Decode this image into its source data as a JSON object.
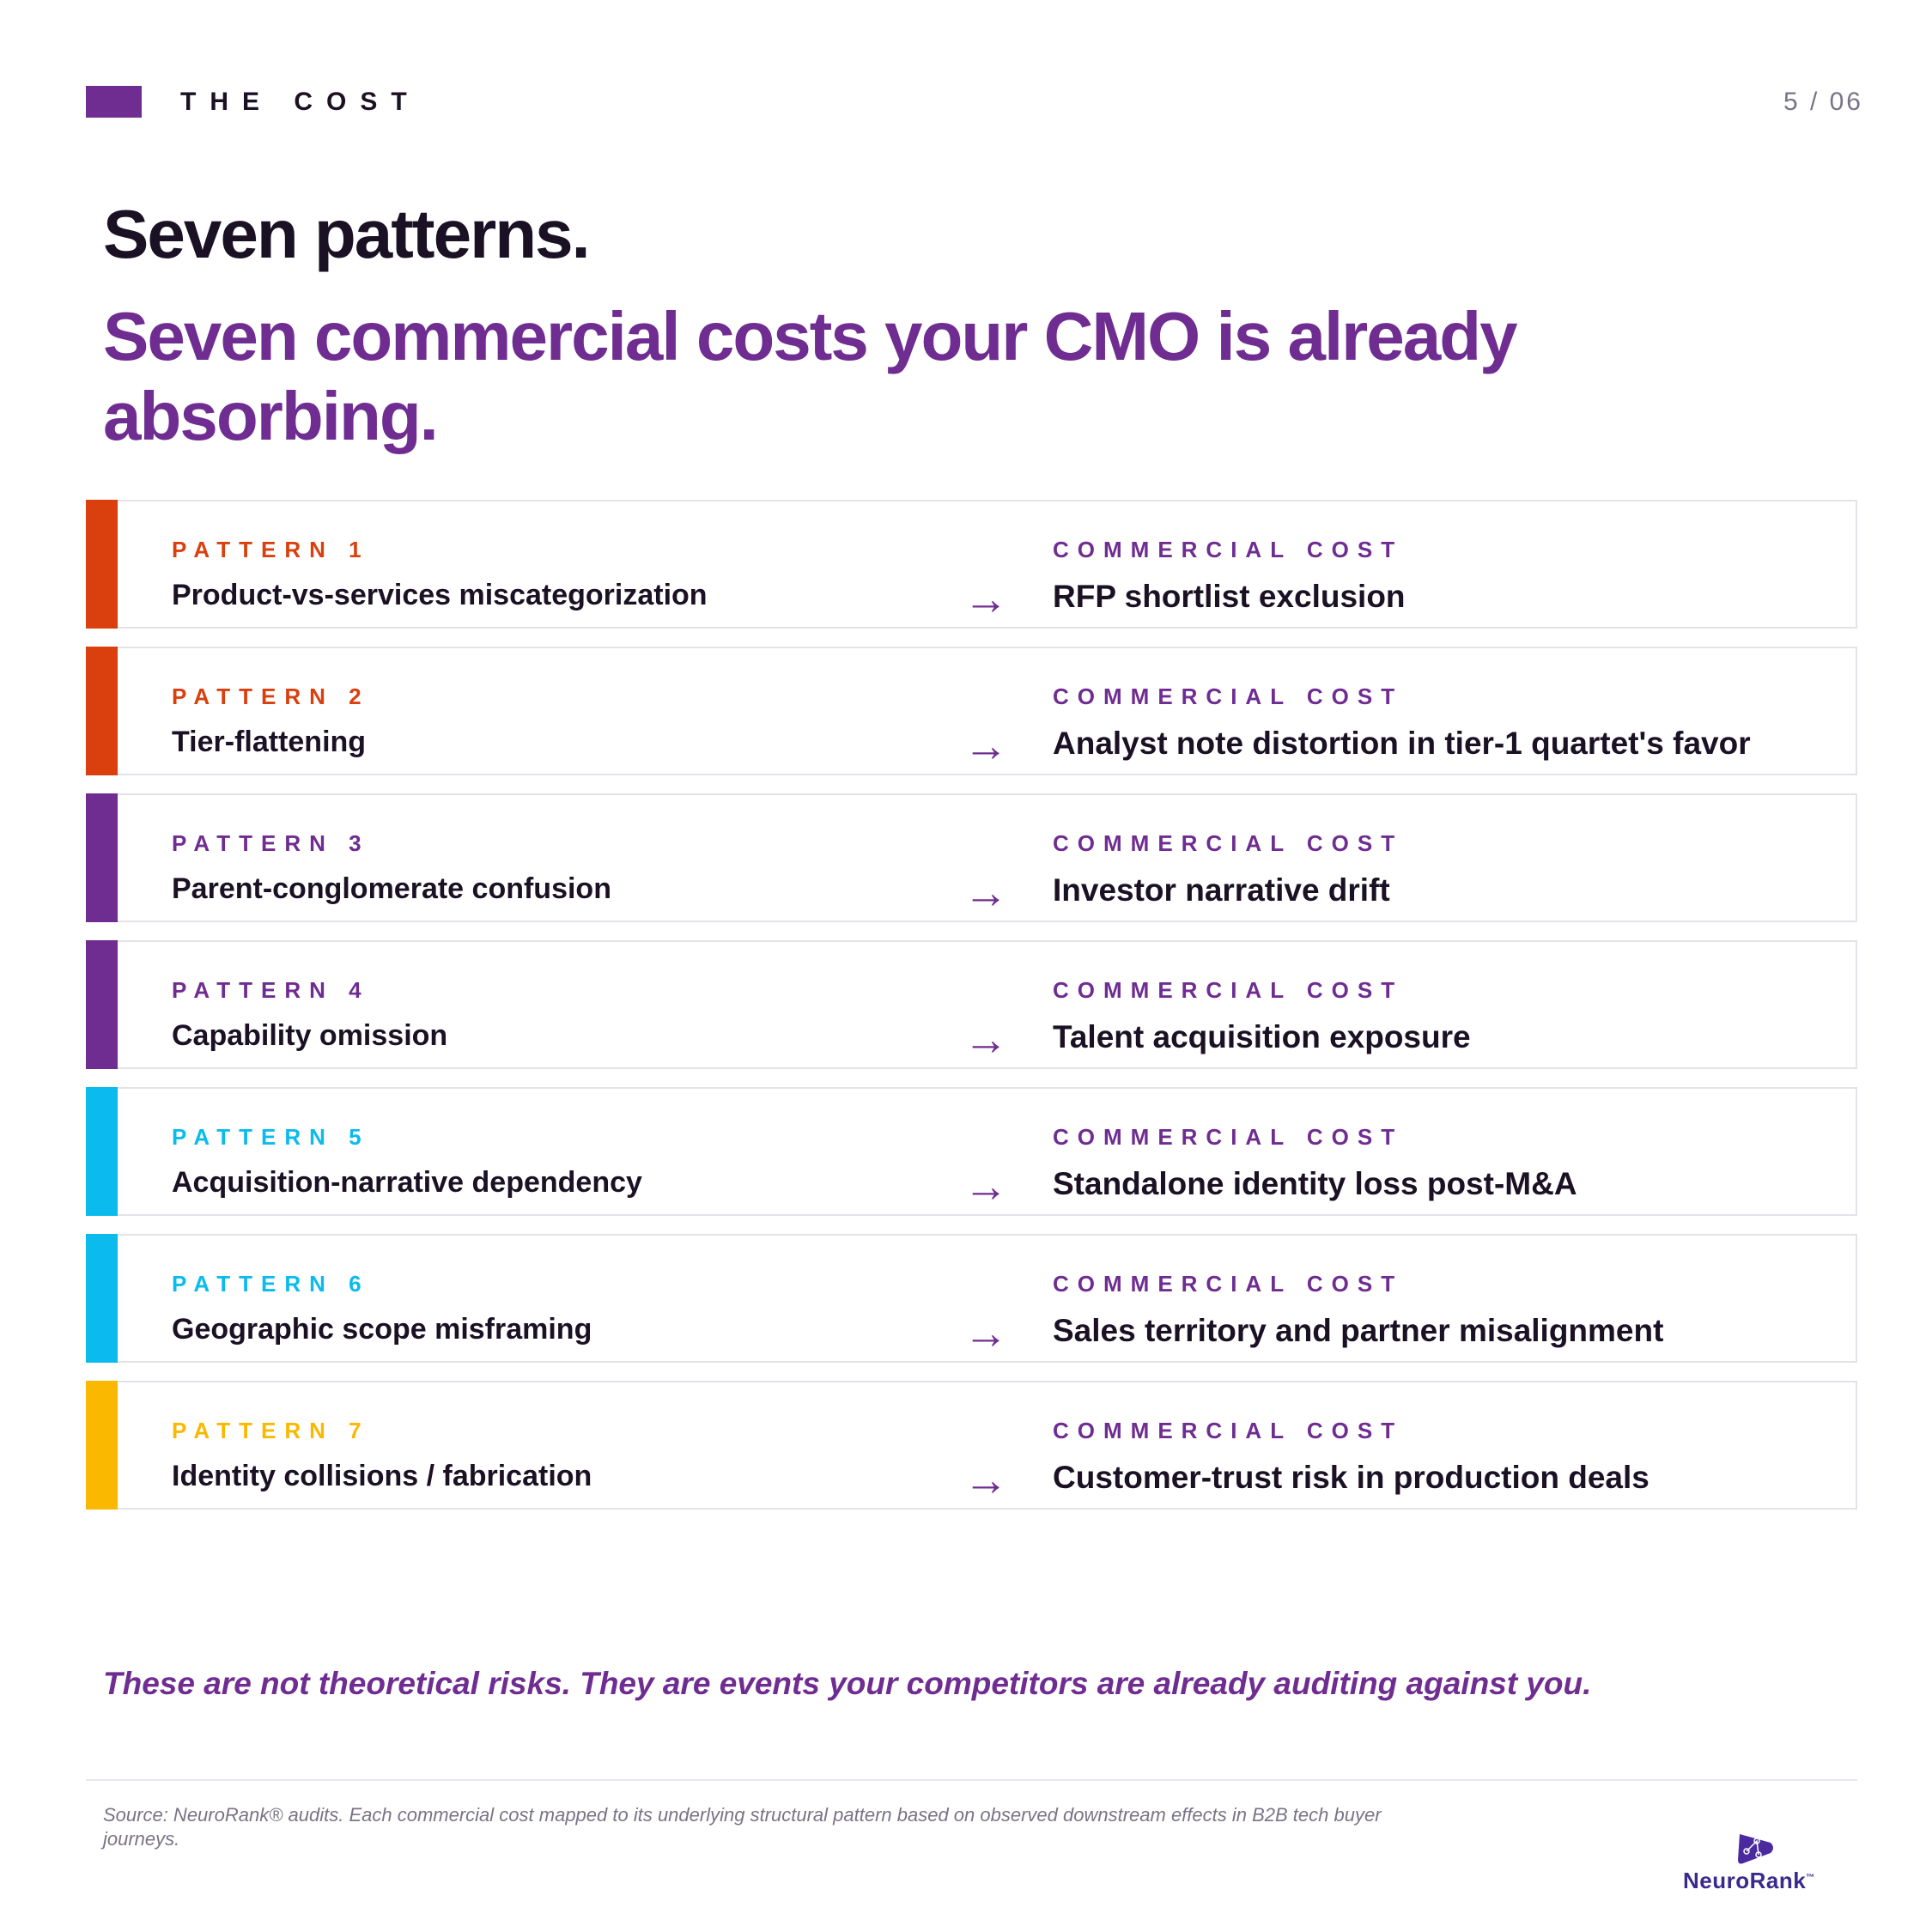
{
  "header": {
    "kicker": "THE COST",
    "page": "5 / 06"
  },
  "title": "Seven patterns.",
  "subtitle": "Seven commercial costs your CMO is already absorbing.",
  "rows": [
    {
      "label": "PATTERN 1",
      "name": "Product-vs-services miscategorization",
      "cost_label": "COMMERCIAL COST",
      "cost": "RFP shortlist exclusion",
      "color": "#d9400e"
    },
    {
      "label": "PATTERN 2",
      "name": "Tier-flattening",
      "cost_label": "COMMERCIAL COST",
      "cost": "Analyst note distortion in tier-1 quartet's favor",
      "color": "#d9400e"
    },
    {
      "label": "PATTERN 3",
      "name": "Parent-conglomerate confusion",
      "cost_label": "COMMERCIAL COST",
      "cost": "Investor narrative drift",
      "color": "#6f2c91"
    },
    {
      "label": "PATTERN 4",
      "name": "Capability omission",
      "cost_label": "COMMERCIAL COST",
      "cost": "Talent acquisition exposure",
      "color": "#6f2c91"
    },
    {
      "label": "PATTERN 5",
      "name": "Acquisition-narrative dependency",
      "cost_label": "COMMERCIAL COST",
      "cost": "Standalone identity loss post-M&A",
      "color": "#0bbbee"
    },
    {
      "label": "PATTERN 6",
      "name": "Geographic scope misframing",
      "cost_label": "COMMERCIAL COST",
      "cost": "Sales territory and partner misalignment",
      "color": "#0bbbee"
    },
    {
      "label": "PATTERN 7",
      "name": "Identity collisions / fabrication",
      "cost_label": "COMMERCIAL COST",
      "cost": "Customer-trust risk in production deals",
      "color": "#fbb800"
    }
  ],
  "arrow": "→",
  "tagline": "These are not theoretical risks. They are events your competitors are already auditing against you.",
  "source": "Source: NeuroRank® audits. Each commercial cost mapped to its underlying structural pattern based on observed downstream effects in B2B tech buyer journeys.",
  "logo": {
    "wordmark": "NeuroRank",
    "tm": "™",
    "icon": "neurorank-logo-icon"
  },
  "colors": {
    "accent": "#6f2c91",
    "orange": "#d9400e",
    "cyan": "#0bbbee",
    "yellow": "#fbb800"
  }
}
